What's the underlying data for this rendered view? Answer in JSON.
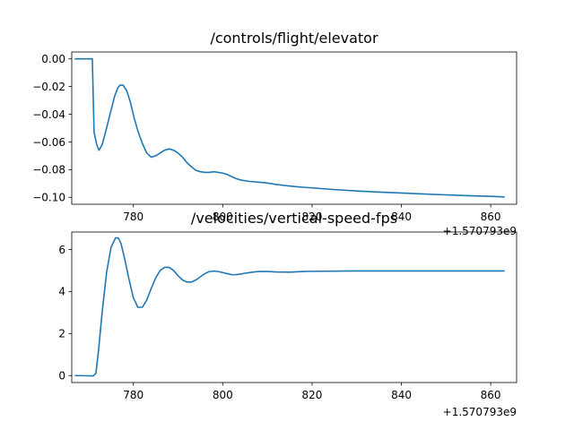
{
  "chart_data": [
    {
      "type": "line",
      "title": "/controls/flight/elevator",
      "x_offset_label": "+1.570793e9",
      "xlim": [
        766.2,
        865.8
      ],
      "ylim": [
        -0.105,
        0.005
      ],
      "xticks": [
        780,
        800,
        820,
        840,
        860
      ],
      "yticks": [
        0.0,
        -0.02,
        -0.04,
        -0.06,
        -0.08,
        -0.1
      ],
      "ytick_labels": [
        "0.00",
        "−0.02",
        "−0.04",
        "−0.06",
        "−0.08",
        "−0.10"
      ],
      "grid": false,
      "color": "#1f77b4",
      "series": [
        {
          "x": [
            767,
            770,
            770.8,
            771.2,
            771.8,
            772.3,
            773,
            774,
            775,
            775.8,
            776.5,
            777,
            777.7,
            778.5,
            779.3,
            780.2,
            781,
            782,
            783,
            784,
            785,
            786,
            787,
            788,
            789,
            790,
            791,
            792,
            793,
            794,
            795,
            796,
            797,
            798,
            799,
            800,
            801,
            802,
            803,
            804,
            805,
            806,
            808,
            810,
            812,
            814,
            816,
            818,
            820,
            825,
            830,
            835,
            840,
            845,
            850,
            855,
            860,
            863
          ],
          "y": [
            0.0,
            0.0,
            0.0,
            -0.053,
            -0.062,
            -0.066,
            -0.062,
            -0.05,
            -0.037,
            -0.027,
            -0.021,
            -0.019,
            -0.019,
            -0.023,
            -0.031,
            -0.043,
            -0.052,
            -0.061,
            -0.068,
            -0.071,
            -0.07,
            -0.068,
            -0.066,
            -0.065,
            -0.066,
            -0.068,
            -0.071,
            -0.075,
            -0.078,
            -0.0805,
            -0.0815,
            -0.082,
            -0.082,
            -0.0815,
            -0.082,
            -0.0825,
            -0.0835,
            -0.085,
            -0.0865,
            -0.0875,
            -0.088,
            -0.0885,
            -0.089,
            -0.0897,
            -0.0907,
            -0.0915,
            -0.0922,
            -0.0927,
            -0.0932,
            -0.0944,
            -0.0954,
            -0.0962,
            -0.0969,
            -0.0976,
            -0.0982,
            -0.0988,
            -0.0993,
            -0.0997
          ]
        }
      ]
    },
    {
      "type": "line",
      "title": "/velocities/vertical-speed-fps",
      "x_offset_label": "+1.570793e9",
      "xlim": [
        766.2,
        865.8
      ],
      "ylim": [
        -0.33,
        6.83
      ],
      "xticks": [
        780,
        800,
        820,
        840,
        860
      ],
      "yticks": [
        0,
        2,
        4,
        6
      ],
      "ytick_labels": [
        "0",
        "2",
        "4",
        "6"
      ],
      "grid": false,
      "color": "#1f77b4",
      "series": [
        {
          "x": [
            767,
            770,
            771,
            771.6,
            772.2,
            773,
            774,
            775,
            776,
            776.6,
            777.2,
            778,
            779,
            780,
            781,
            782,
            783,
            784,
            785,
            786,
            787,
            788,
            789,
            790,
            791,
            792,
            793,
            794,
            795,
            796,
            797,
            798,
            799,
            800,
            801,
            802,
            803,
            804,
            805,
            806,
            807,
            808,
            810,
            812,
            815,
            818,
            820,
            825,
            830,
            835,
            840,
            845,
            850,
            855,
            860,
            863
          ],
          "y": [
            0.0,
            -0.01,
            -0.02,
            0.1,
            1.2,
            3.0,
            4.9,
            6.1,
            6.55,
            6.55,
            6.3,
            5.6,
            4.6,
            3.7,
            3.25,
            3.25,
            3.6,
            4.15,
            4.65,
            5.0,
            5.15,
            5.15,
            5.0,
            4.75,
            4.55,
            4.45,
            4.45,
            4.55,
            4.7,
            4.85,
            4.95,
            4.97,
            4.95,
            4.9,
            4.85,
            4.8,
            4.8,
            4.83,
            4.87,
            4.9,
            4.93,
            4.95,
            4.95,
            4.93,
            4.92,
            4.95,
            4.96,
            4.97,
            4.98,
            4.98,
            4.98,
            4.98,
            4.98,
            4.98,
            4.98,
            4.98
          ]
        }
      ]
    }
  ]
}
